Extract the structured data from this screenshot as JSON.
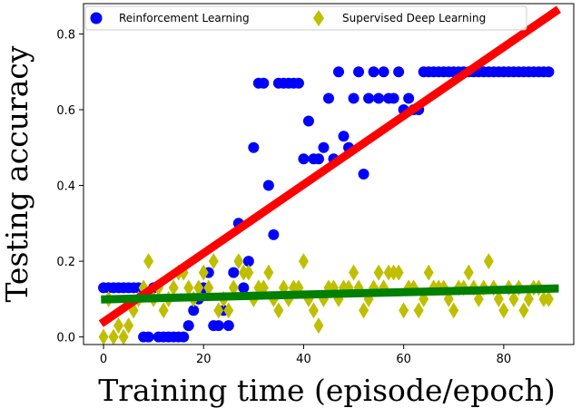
{
  "chart_data": {
    "type": "scatter",
    "xlabel": "Training time (episode/epoch)",
    "ylabel": "Testing accuracy",
    "xlim": [
      -4,
      94
    ],
    "ylim": [
      -0.02,
      0.88
    ],
    "xticks": [
      0,
      20,
      40,
      60,
      80
    ],
    "yticks": [
      0.0,
      0.2,
      0.4,
      0.6,
      0.8
    ],
    "tick_labels_x": [
      "0",
      "20",
      "40",
      "60",
      "80"
    ],
    "tick_labels_y": [
      "0.0",
      "0.2",
      "0.4",
      "0.6",
      "0.8"
    ],
    "grid": false,
    "legend": {
      "placement": "top",
      "entries": [
        "Reinforcement Learning",
        "Supervised Deep Learning"
      ]
    },
    "series": [
      {
        "name": "Reinforcement Learning",
        "marker": "circle",
        "color": "#0000ff",
        "x": [
          0,
          1,
          2,
          3,
          4,
          5,
          6,
          7,
          8,
          9,
          10,
          11,
          12,
          13,
          14,
          15,
          16,
          17,
          18,
          19,
          20,
          21,
          22,
          23,
          24,
          25,
          26,
          27,
          28,
          29,
          30,
          31,
          32,
          33,
          34,
          35,
          36,
          37,
          38,
          39,
          40,
          41,
          42,
          43,
          44,
          45,
          46,
          47,
          48,
          49,
          50,
          51,
          52,
          53,
          54,
          55,
          56,
          57,
          58,
          59,
          60,
          61,
          62,
          63,
          64,
          65,
          66,
          67,
          68,
          69,
          70,
          71,
          72,
          73,
          74,
          75,
          76,
          77,
          78,
          79,
          80,
          81,
          82,
          83,
          84,
          85,
          86,
          87,
          88,
          89
        ],
        "y": [
          0.13,
          0.13,
          0.13,
          0.13,
          0.13,
          0.13,
          0.13,
          0.13,
          0.0,
          0.0,
          0.13,
          0.0,
          0.0,
          0.0,
          0.0,
          0.0,
          0.0,
          0.03,
          0.07,
          0.1,
          0.13,
          0.17,
          0.03,
          0.03,
          0.07,
          0.03,
          0.17,
          0.3,
          0.13,
          0.2,
          0.5,
          0.67,
          0.67,
          0.4,
          0.27,
          0.67,
          0.67,
          0.67,
          0.67,
          0.67,
          0.47,
          0.57,
          0.47,
          0.47,
          0.5,
          0.63,
          0.47,
          0.7,
          0.53,
          0.5,
          0.63,
          0.7,
          0.43,
          0.63,
          0.7,
          0.63,
          0.7,
          0.63,
          0.63,
          0.7,
          0.6,
          0.63,
          0.6,
          0.6,
          0.7,
          0.7,
          0.7,
          0.7,
          0.7,
          0.7,
          0.7,
          0.7,
          0.7,
          0.7,
          0.7,
          0.7,
          0.7,
          0.7,
          0.7,
          0.7,
          0.7,
          0.7,
          0.7,
          0.7,
          0.7,
          0.7,
          0.7,
          0.7,
          0.7,
          0.7
        ]
      },
      {
        "name": "Supervised Deep Learning",
        "marker": "diamond",
        "color": "#bfbf00",
        "x": [
          0,
          1,
          2,
          3,
          4,
          5,
          6,
          7,
          8,
          9,
          10,
          11,
          12,
          13,
          14,
          15,
          16,
          17,
          18,
          19,
          20,
          21,
          22,
          23,
          24,
          25,
          26,
          27,
          28,
          29,
          30,
          31,
          32,
          33,
          34,
          35,
          36,
          37,
          38,
          39,
          40,
          41,
          42,
          43,
          44,
          45,
          46,
          47,
          48,
          49,
          50,
          51,
          52,
          53,
          54,
          55,
          56,
          57,
          58,
          59,
          60,
          61,
          62,
          63,
          64,
          65,
          66,
          67,
          68,
          69,
          70,
          71,
          72,
          73,
          74,
          75,
          76,
          77,
          78,
          79,
          80,
          81,
          82,
          83,
          84,
          85,
          86,
          87,
          88,
          89
        ],
        "y": [
          0.0,
          0.1,
          0.0,
          0.03,
          0.0,
          0.03,
          0.07,
          0.1,
          0.13,
          0.2,
          0.1,
          0.13,
          0.07,
          0.1,
          0.13,
          0.17,
          0.17,
          0.13,
          0.1,
          0.13,
          0.17,
          0.13,
          0.2,
          0.07,
          0.1,
          0.07,
          0.13,
          0.2,
          0.17,
          0.17,
          0.1,
          0.13,
          0.13,
          0.17,
          0.1,
          0.07,
          0.13,
          0.1,
          0.13,
          0.13,
          0.2,
          0.1,
          0.07,
          0.03,
          0.1,
          0.13,
          0.13,
          0.1,
          0.13,
          0.13,
          0.17,
          0.13,
          0.07,
          0.1,
          0.13,
          0.17,
          0.13,
          0.17,
          0.17,
          0.17,
          0.07,
          0.13,
          0.13,
          0.07,
          0.1,
          0.17,
          0.13,
          0.13,
          0.13,
          0.1,
          0.07,
          0.13,
          0.13,
          0.17,
          0.13,
          0.1,
          0.13,
          0.2,
          0.13,
          0.1,
          0.07,
          0.13,
          0.1,
          0.13,
          0.07,
          0.1,
          0.13,
          0.13,
          0.1,
          0.1
        ]
      }
    ],
    "trend_lines": [
      {
        "series": "Reinforcement Learning",
        "color": "#ff0000",
        "x": [
          -0.5,
          91
        ],
        "y": [
          0.035,
          0.865
        ]
      },
      {
        "series": "Supervised Deep Learning",
        "color": "#008000",
        "x": [
          -0.5,
          91
        ],
        "y": [
          0.099,
          0.128
        ]
      }
    ]
  }
}
